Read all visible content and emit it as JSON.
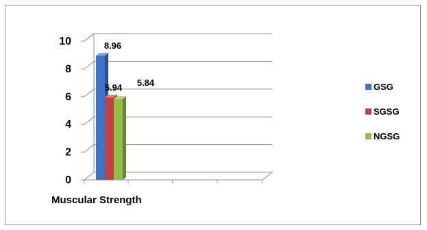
{
  "chart_data": {
    "type": "bar",
    "style": "3d",
    "categories": [
      "Muscular Strength"
    ],
    "series": [
      {
        "name": "GSG",
        "values": [
          8.96
        ],
        "color": "#3F72C8"
      },
      {
        "name": "SGSG",
        "values": [
          5.94
        ],
        "color": "#C8413E"
      },
      {
        "name": "NGSG",
        "values": [
          5.84
        ],
        "color": "#93BB4E"
      }
    ],
    "data_labels": [
      "8.96",
      "5.94",
      "5.84"
    ],
    "y_ticks": [
      "0",
      "2",
      "4",
      "6",
      "8",
      "10"
    ],
    "ylim": [
      0,
      10
    ],
    "grid": true,
    "legend_position": "right",
    "title": "",
    "xlabel": "",
    "ylabel": ""
  }
}
